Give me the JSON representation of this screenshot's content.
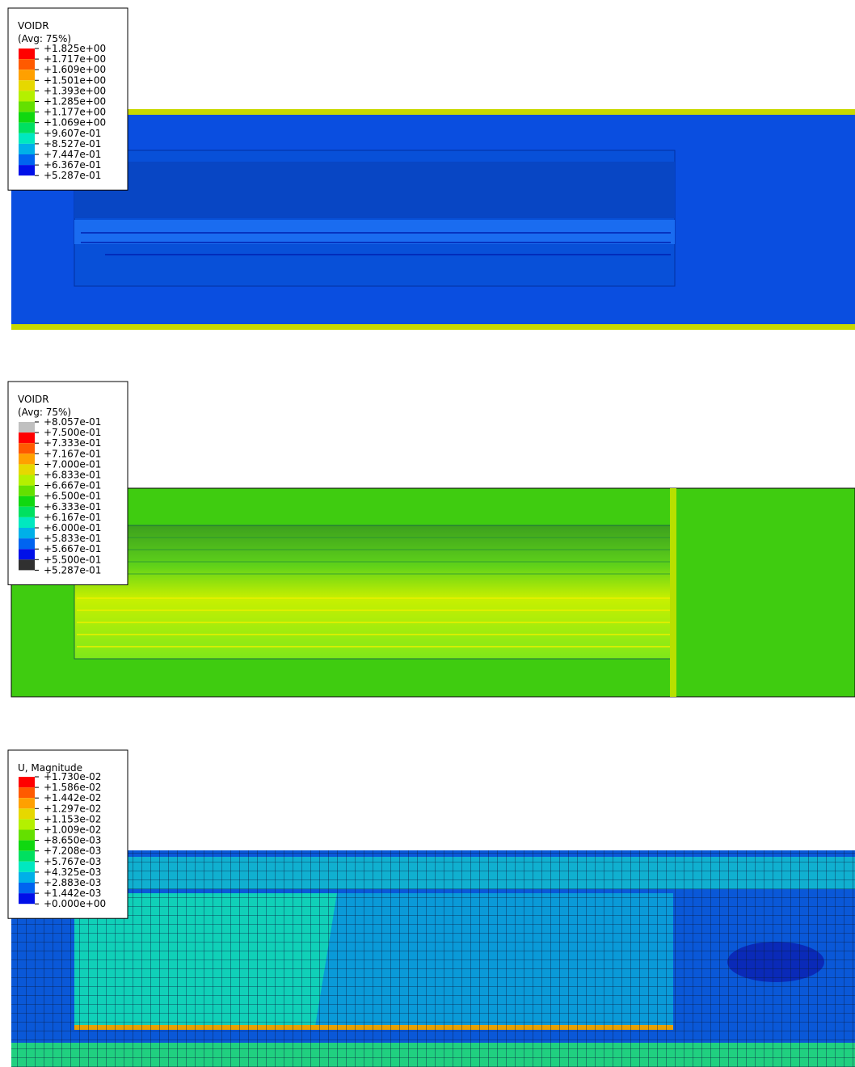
{
  "panels": [
    {
      "title": "VOIDR",
      "subtitle": "(Avg: 75%)",
      "labels": [
        "+1.825e+00",
        "+1.717e+00",
        "+1.609e+00",
        "+1.501e+00",
        "+1.393e+00",
        "+1.285e+00",
        "+1.177e+00",
        "+1.069e+00",
        "+9.607e-01",
        "+8.527e-01",
        "+7.447e-01",
        "+6.367e-01",
        "+5.287e-01"
      ]
    },
    {
      "title": "VOIDR",
      "subtitle": "(Avg: 75%)",
      "labels": [
        "+8.057e-01",
        "+7.500e-01",
        "+7.333e-01",
        "+7.167e-01",
        "+7.000e-01",
        "+6.833e-01",
        "+6.667e-01",
        "+6.500e-01",
        "+6.333e-01",
        "+6.167e-01",
        "+6.000e-01",
        "+5.833e-01",
        "+5.667e-01",
        "+5.500e-01",
        "+5.287e-01"
      ]
    },
    {
      "title": "U, Magnitude",
      "labels": [
        "+1.730e-02",
        "+1.586e-02",
        "+1.442e-02",
        "+1.297e-02",
        "+1.153e-02",
        "+1.009e-02",
        "+8.650e-03",
        "+7.208e-03",
        "+5.767e-03",
        "+4.325e-03",
        "+2.883e-03",
        "+1.442e-03",
        "+0.000e+00"
      ]
    }
  ]
}
